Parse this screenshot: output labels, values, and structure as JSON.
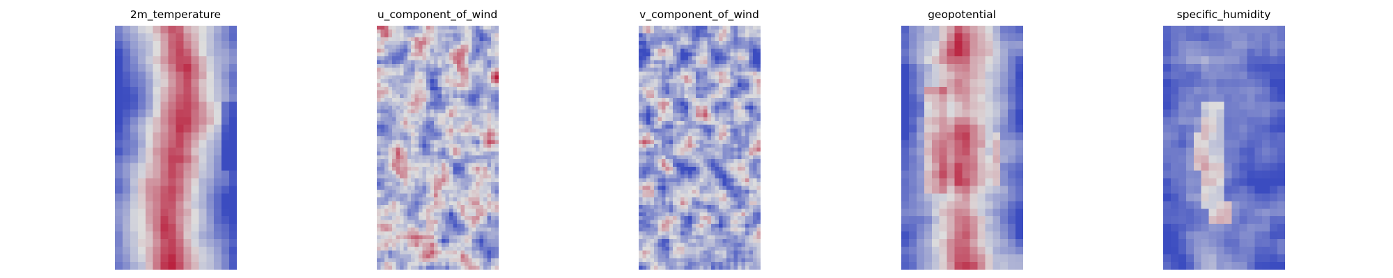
{
  "figure": {
    "colormap": "coolwarm",
    "colormap_low": "#3b4cc0",
    "colormap_mid": "#dddddd",
    "colormap_high": "#b40426",
    "axes_visible": false
  },
  "chart_data": [
    {
      "type": "heatmap",
      "title": "2m_temperature",
      "grid": [
        32,
        16
      ],
      "pattern": "warm central band, cool edges",
      "xlabel": "",
      "ylabel": ""
    },
    {
      "type": "heatmap",
      "title": "u_component_of_wind",
      "grid": [
        64,
        32
      ],
      "pattern": "near-neutral field with scattered red streaks and blue patches",
      "xlabel": "",
      "ylabel": ""
    },
    {
      "type": "heatmap",
      "title": "v_component_of_wind",
      "grid": [
        64,
        32
      ],
      "pattern": "mixed blue background with small isolated red spots",
      "xlabel": "",
      "ylabel": ""
    },
    {
      "type": "heatmap",
      "title": "geopotential",
      "grid": [
        32,
        16
      ],
      "pattern": "warm interior with dark-red cores, cool vertical edges",
      "xlabel": "",
      "ylabel": ""
    },
    {
      "type": "heatmap",
      "title": "specific_humidity",
      "grid": [
        32,
        16
      ],
      "pattern": "mostly blue with a red central streak",
      "xlabel": "",
      "ylabel": ""
    }
  ]
}
